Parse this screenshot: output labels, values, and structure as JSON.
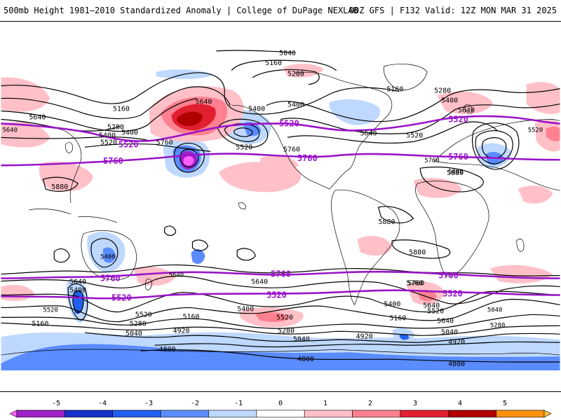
{
  "header": {
    "left_title": "500mb Height 1981–2010 Standardized Anomaly | College of DuPage NEXLAB",
    "right_title": "00Z GFS | F132 Valid: 12Z MON MAR 31 2025"
  },
  "colors": {
    "purple_contour": "#9a14c8",
    "black_contour": "#000000",
    "land": "#ffffff"
  },
  "contour_labels": {
    "black": [
      "5040",
      "5160",
      "5280",
      "5640",
      "5160",
      "5400",
      "5280",
      "5400",
      "5640",
      "5400",
      "5160",
      "5280",
      "5400",
      "5640",
      "5520",
      "5760",
      "5520",
      "5400",
      "5640",
      "5520",
      "5760",
      "5880",
      "5880",
      "5880",
      "5880",
      "5760",
      "5640",
      "5400",
      "5160",
      "5520",
      "5280",
      "5040",
      "5160",
      "4920",
      "4800",
      "5640",
      "5400",
      "5520",
      "5280",
      "5040",
      "4920",
      "4800",
      "5400",
      "5640",
      "5760",
      "5520",
      "5160",
      "5040",
      "4920",
      "4800",
      "5640"
    ],
    "purple": [
      "5520",
      "5520",
      "5760",
      "5760",
      "5520",
      "5760",
      "5760",
      "5760",
      "5760",
      "5520",
      "5520",
      "5520"
    ],
    "small": [
      "5640",
      "5520",
      "5760",
      "5880",
      "5400",
      "5640",
      "5520",
      "5040",
      "5280"
    ]
  },
  "legend": {
    "labels": [
      "-5",
      "-4",
      "-3",
      "-2",
      "-1",
      "0",
      "1",
      "2",
      "3",
      "4",
      "5"
    ],
    "colors": [
      "#ff60ff",
      "#a020c8",
      "#1432c8",
      "#2060f0",
      "#5a8cff",
      "#bed8ff",
      "#ffffff",
      "#ffc0c8",
      "#ff8090",
      "#e02030",
      "#b00000",
      "#ff9010",
      "#ffc040"
    ]
  }
}
